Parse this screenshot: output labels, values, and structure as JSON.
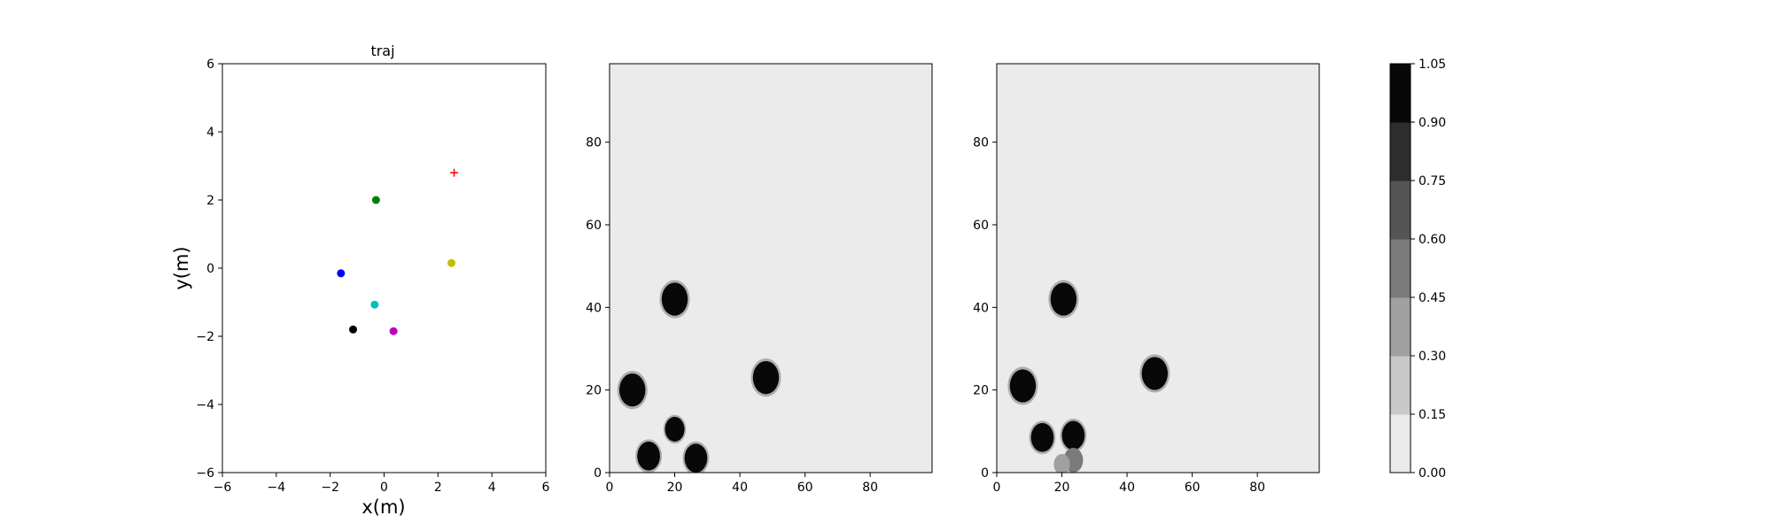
{
  "chart_data": [
    {
      "type": "scatter",
      "title": "traj",
      "xlabel": "x(m)",
      "ylabel": "y(m)",
      "xlim": [
        -6,
        6
      ],
      "ylim": [
        -6,
        6
      ],
      "xticks": [
        -6,
        -4,
        -2,
        0,
        2,
        4,
        6
      ],
      "yticks": [
        -6,
        -4,
        -2,
        0,
        2,
        4,
        6
      ],
      "points": [
        {
          "x": -0.3,
          "y": 2.0,
          "color": "#008000",
          "marker": "circle"
        },
        {
          "x": -1.6,
          "y": -0.15,
          "color": "#0000ff",
          "marker": "circle"
        },
        {
          "x": 2.5,
          "y": 0.15,
          "color": "#bfbf00",
          "marker": "circle"
        },
        {
          "x": -0.35,
          "y": -1.07,
          "color": "#00bfbf",
          "marker": "circle"
        },
        {
          "x": -1.15,
          "y": -1.8,
          "color": "#000000",
          "marker": "circle"
        },
        {
          "x": 0.35,
          "y": -1.85,
          "color": "#bf00bf",
          "marker": "circle"
        },
        {
          "x": 2.6,
          "y": 2.8,
          "color": "#ff0000",
          "marker": "plus"
        }
      ]
    },
    {
      "type": "heatmap",
      "title": "",
      "xlim": [
        0,
        99
      ],
      "ylim": [
        0,
        99
      ],
      "xticks": [
        0,
        20,
        40,
        60,
        80
      ],
      "yticks": [
        0,
        20,
        40,
        60,
        80
      ],
      "background_level": 0.0,
      "blobs": [
        {
          "x": 20,
          "y": 42,
          "r": 4,
          "level": 1.0
        },
        {
          "x": 7,
          "y": 20,
          "r": 4,
          "level": 1.0
        },
        {
          "x": 48,
          "y": 23,
          "r": 4,
          "level": 1.0
        },
        {
          "x": 20,
          "y": 10.5,
          "r": 3,
          "level": 1.0
        },
        {
          "x": 12,
          "y": 4,
          "r": 3.5,
          "level": 1.0
        },
        {
          "x": 26.5,
          "y": 3.5,
          "r": 3.5,
          "level": 1.0
        }
      ]
    },
    {
      "type": "heatmap",
      "title": "",
      "xlim": [
        0,
        99
      ],
      "ylim": [
        0,
        99
      ],
      "xticks": [
        0,
        20,
        40,
        60,
        80
      ],
      "yticks": [
        0,
        20,
        40,
        60,
        80
      ],
      "background_level": 0.0,
      "blobs": [
        {
          "x": 20.5,
          "y": 42,
          "r": 4,
          "level": 1.0
        },
        {
          "x": 8,
          "y": 21,
          "r": 4,
          "level": 1.0
        },
        {
          "x": 48.5,
          "y": 24,
          "r": 4,
          "level": 1.0
        },
        {
          "x": 14,
          "y": 8.5,
          "r": 3.5,
          "level": 1.0
        },
        {
          "x": 23.5,
          "y": 9,
          "r": 3.5,
          "level": 1.0
        },
        {
          "x": 23.5,
          "y": 3,
          "r": 3,
          "level": 0.5
        },
        {
          "x": 20,
          "y": 2,
          "r": 2.5,
          "level": 0.35
        }
      ]
    }
  ],
  "colorbar": {
    "levels": [
      "0.00",
      "0.15",
      "0.30",
      "0.45",
      "0.60",
      "0.75",
      "0.90",
      "1.05"
    ],
    "colors": [
      "#ebebeb",
      "#c8c8c8",
      "#a0a0a0",
      "#7a7a7a",
      "#555555",
      "#2d2d2d",
      "#080808"
    ]
  }
}
